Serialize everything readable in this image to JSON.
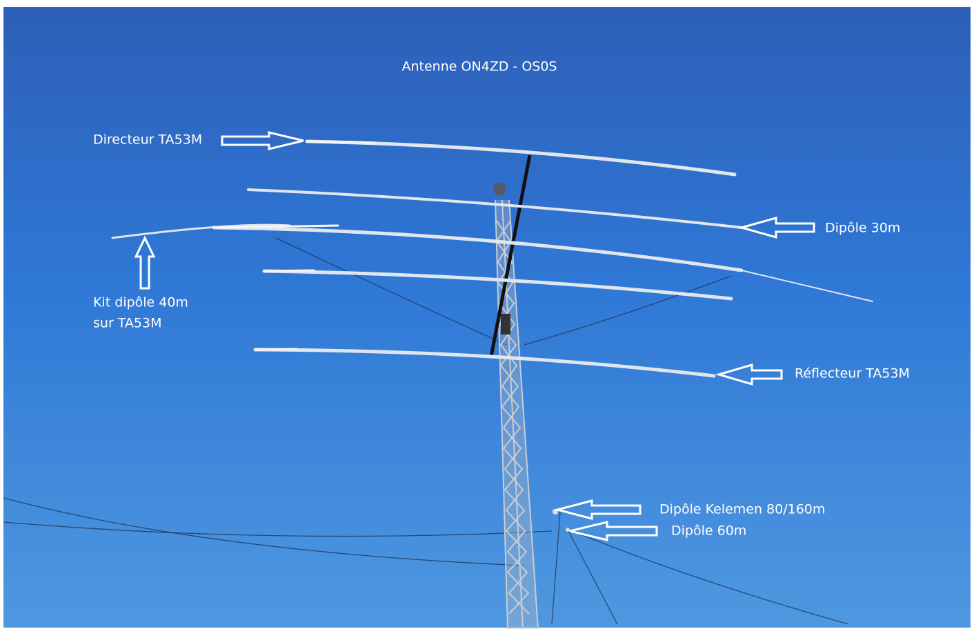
{
  "title": "Antenne ON4ZD - OS0S",
  "labels": {
    "director": "Directeur TA53M",
    "dipole_30m": "Dipôle 30m",
    "kit_40m": [
      "Kit dipôle 40m",
      "sur TA53M"
    ],
    "reflector": "Réflecteur TA53M",
    "kelemen": "Dipôle Kelemen 80/160m",
    "dipole_60m": "Dipôle 60m"
  }
}
